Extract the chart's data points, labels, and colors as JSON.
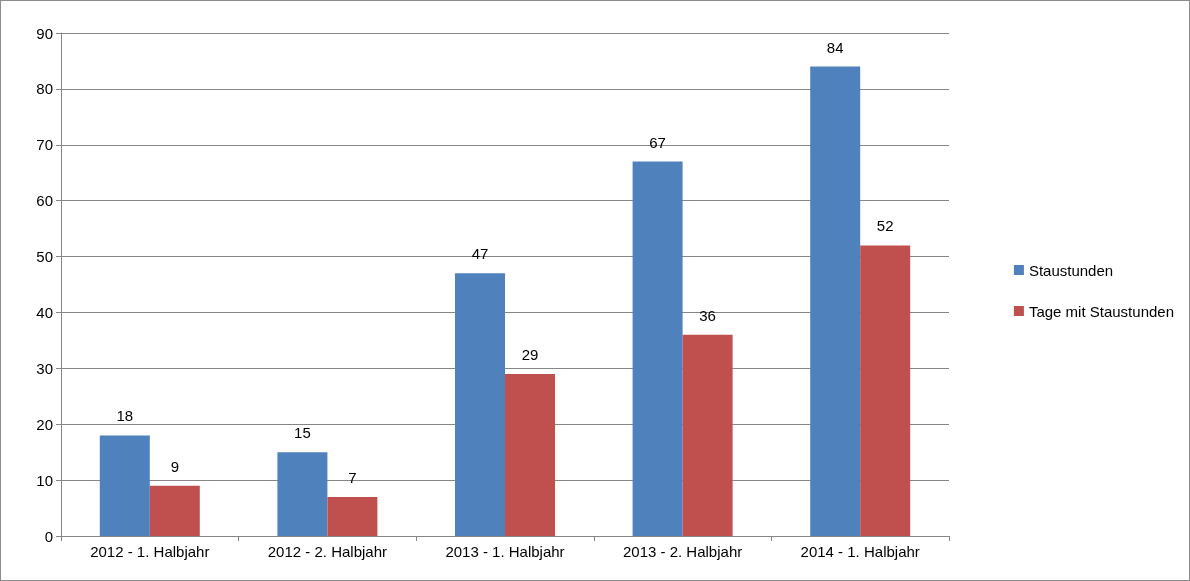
{
  "chart_data": {
    "type": "bar",
    "categories": [
      "2012 - 1. Halbjahr",
      "2012 - 2. Halbjahr",
      "2013 - 1. Halbjahr",
      "2013 - 2. Halbjahr",
      "2014 - 1. Halbjahr"
    ],
    "series": [
      {
        "name": "Staustunden",
        "color": "#4f81bd",
        "values": [
          18,
          15,
          47,
          67,
          84
        ]
      },
      {
        "name": "Tage mit Staustunden",
        "color": "#c0504d",
        "values": [
          9,
          7,
          29,
          36,
          52
        ]
      }
    ],
    "ylim": [
      0,
      90
    ],
    "yticks": [
      0,
      10,
      20,
      30,
      40,
      50,
      60,
      70,
      80,
      90
    ],
    "grid": "y",
    "legend": "right",
    "data_labels": true
  }
}
